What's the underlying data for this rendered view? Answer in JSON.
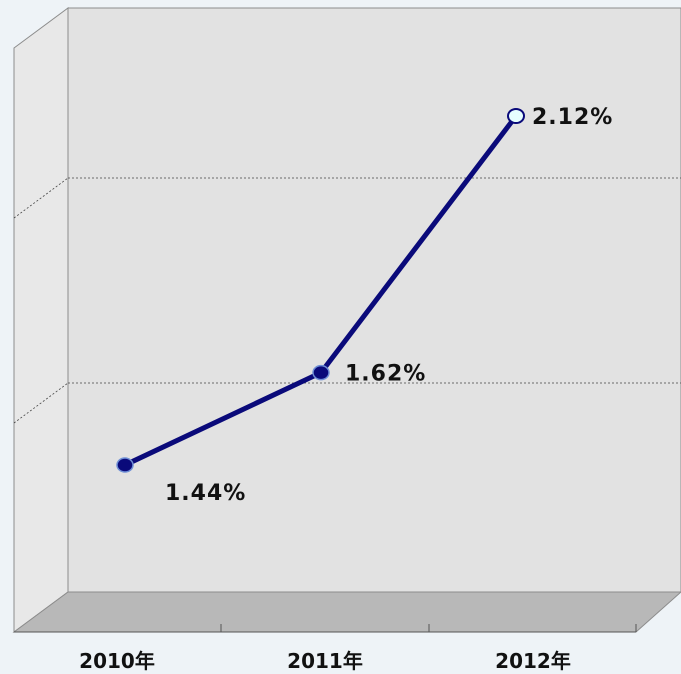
{
  "chart_data": {
    "type": "line",
    "categories": [
      "2010年",
      "2011年",
      "2012年"
    ],
    "series": [
      {
        "values": [
          1.44,
          1.62,
          2.12
        ]
      }
    ],
    "data_labels": [
      "1.44%",
      "1.62%",
      "2.12%"
    ],
    "ylim": [
      1.0,
      2.2
    ],
    "grid": true,
    "legend": "none",
    "title": "",
    "xlabel": "",
    "ylabel": ""
  },
  "colors": {
    "line": "#0a0a7a",
    "marker": "#0a0a7a",
    "marker_highlight_fill": "#e6ffff",
    "back_wall": "#e2e2e2",
    "side_wall": "#e8e8e8",
    "floor": "#b8b8b8",
    "background": "#eef3f7"
  }
}
